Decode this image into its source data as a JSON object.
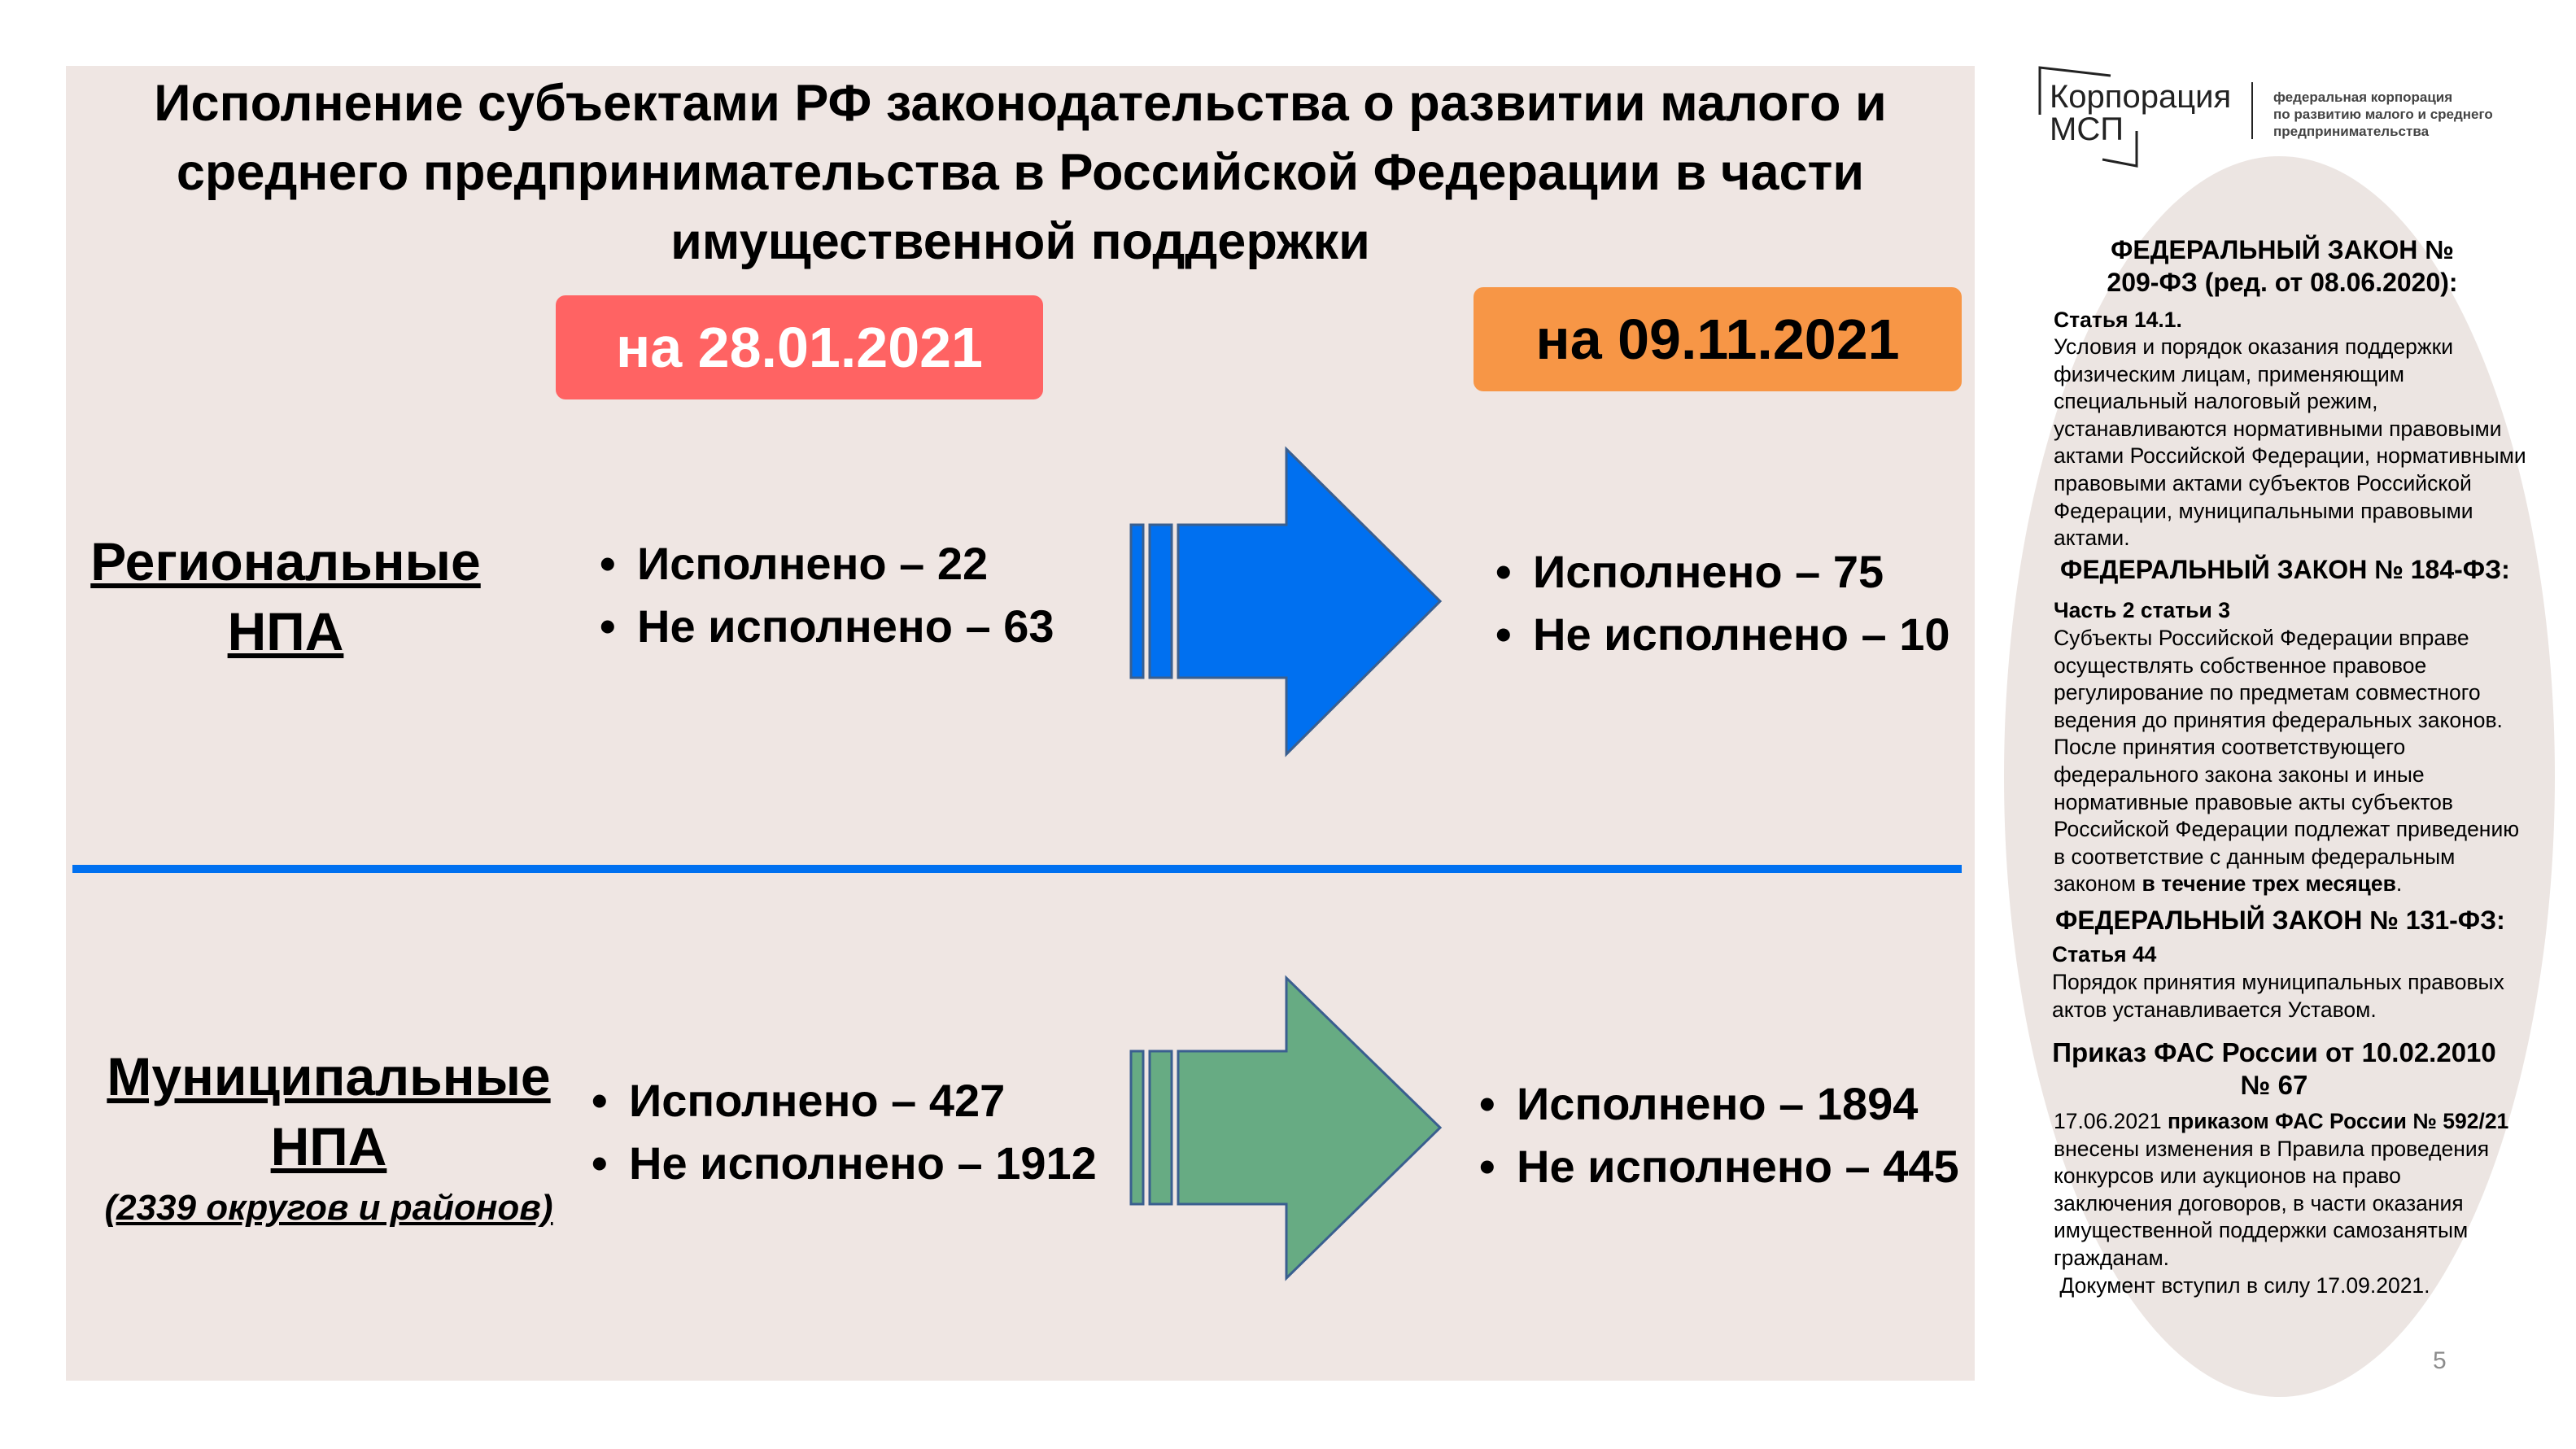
{
  "title": {
    "lines": [
      "Исполнение субъектами РФ законодательства о развитии малого и",
      "среднего предпринимательства в Российской Федерации в части",
      "имущественной поддержки"
    ]
  },
  "badges": {
    "before": {
      "label": "на 28.01.2021",
      "color": "#ff6363"
    },
    "after": {
      "label": "на 09.11.2021",
      "color": "#f79646"
    }
  },
  "regional": {
    "label_lines": [
      "Региональные",
      "НПА"
    ],
    "before": [
      "Исполнено – 22",
      "Не исполнено – 63"
    ],
    "after": [
      "Исполнено – 75",
      "Не исполнено – 10"
    ],
    "arrow_color": "#0070f0"
  },
  "municipal": {
    "label_lines": [
      "Муниципальные",
      "НПА"
    ],
    "sublabel": "(2339 округов и районов)",
    "before": [
      "Исполнено – 427",
      "Не исполнено – 1912"
    ],
    "after": [
      "Исполнено – 1894",
      "Не исполнено – 445"
    ],
    "arrow_color": "#67ab83"
  },
  "logo": {
    "name_lines": [
      "Корпорация",
      "МСП"
    ],
    "tagline_lines": [
      "федеральная корпорация",
      "по развитию малого и среднего",
      "предпринимательства"
    ]
  },
  "sidebar": {
    "law209": {
      "heading_lines": [
        "ФЕДЕРАЛЬНЫЙ ЗАКОН №",
        "209-ФЗ (ред. от 08.06.2020):"
      ],
      "article": "Статья 14.1.",
      "body_lines": [
        "Условия и порядок оказания поддержки",
        "физическим лицам, применяющим",
        "специальный налоговый режим,",
        "устанавливаются нормативными правовыми",
        "актами Российской Федерации, нормативными",
        "правовыми актами субъектов Российской",
        "Федерации, муниципальными правовыми",
        "актами."
      ]
    },
    "law184": {
      "heading": "ФЕДЕРАЛЬНЫЙ ЗАКОН № 184-ФЗ:",
      "article": "Часть 2 статьи 3",
      "body_lines": [
        "Субъекты Российской Федерации вправе",
        "осуществлять собственное правовое",
        "регулирование по предметам совместного",
        "ведения до принятия федеральных законов.",
        "После принятия соответствующего",
        "федерального закона законы и иные",
        "нормативные правовые акты субъектов",
        "Российской Федерации подлежат приведению",
        "в соответствие с данным федеральным"
      ],
      "last_line_prefix": "законом ",
      "last_line_bold": "в течение трех месяцев",
      "last_line_suffix": "."
    },
    "law131": {
      "heading": "ФЕДЕРАЛЬНЫЙ ЗАКОН № 131-ФЗ:",
      "article": "Статья 44",
      "body_lines": [
        "Порядок принятия муниципальных правовых",
        "актов устанавливается Уставом."
      ]
    },
    "fas": {
      "heading_lines": [
        "Приказ ФАС России от 10.02.2010",
        "№ 67"
      ],
      "first_line_prefix": "17.06.2021 ",
      "first_line_bold": "приказом ФАС России № 592/21",
      "body_lines": [
        "внесены изменения в Правила проведения",
        "конкурсов или аукционов на право",
        "заключения договоров, в части оказания",
        "имущественной поддержки самозанятым",
        "гражданам."
      ],
      "effective": " Документ вступил в силу 17.09.2021."
    }
  },
  "page_number": "5"
}
